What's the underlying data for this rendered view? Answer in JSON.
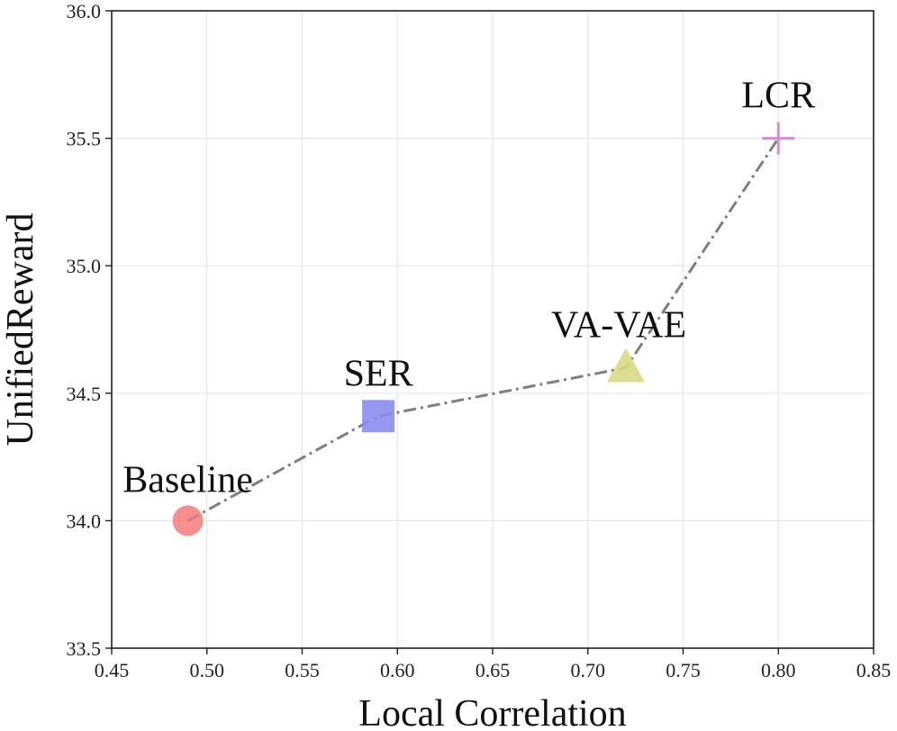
{
  "chart_data": {
    "type": "scatter",
    "title": "",
    "xlabel": "Local Correlation",
    "ylabel": "UnifiedReward",
    "xlim": [
      0.45,
      0.85
    ],
    "ylim": [
      33.5,
      36.0
    ],
    "xticks": [
      "0.45",
      "0.50",
      "0.55",
      "0.60",
      "0.65",
      "0.70",
      "0.75",
      "0.80",
      "0.85"
    ],
    "yticks": [
      "33.5",
      "34.0",
      "34.5",
      "35.0",
      "35.5",
      "36.0"
    ],
    "grid": true,
    "line_style": "dash-dot",
    "line_color": "#7f7f7f",
    "points": [
      {
        "name": "Baseline",
        "x": 0.49,
        "y": 34.0,
        "marker": "circle",
        "color": "#f47c7c"
      },
      {
        "name": "SER",
        "x": 0.59,
        "y": 34.41,
        "marker": "square",
        "color": "#8a8cf0"
      },
      {
        "name": "VA-VAE",
        "x": 0.72,
        "y": 34.6,
        "marker": "triangle",
        "color": "#d9dc84"
      },
      {
        "name": "LCR",
        "x": 0.8,
        "y": 35.5,
        "marker": "plus",
        "color": "#d78bd7"
      }
    ]
  }
}
